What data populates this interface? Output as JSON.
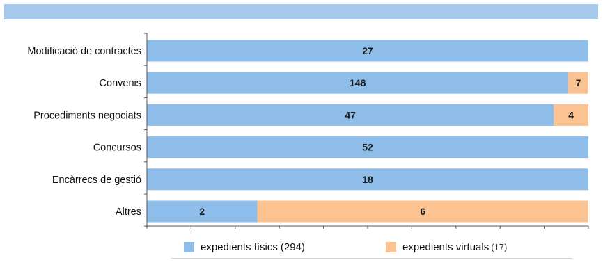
{
  "chart_data": {
    "type": "bar",
    "orientation": "horizontal",
    "stacking": "percent",
    "categories": [
      "Modificació de contractes",
      "Convenis",
      "Procediments negociats",
      "Concursos",
      "Encàrrecs de gestió",
      "Altres"
    ],
    "series": [
      {
        "name": "expedients físics",
        "count": "(294)",
        "color": "#8dbde8",
        "values": [
          27,
          148,
          47,
          52,
          18,
          2
        ]
      },
      {
        "name": "expedients virtuals",
        "count": "(17)",
        "color": "#fbc391",
        "values": [
          0,
          7,
          4,
          0,
          0,
          6
        ]
      }
    ],
    "xticks": [
      "0%",
      "10%",
      "20%",
      "30%",
      "40%",
      "50%",
      "60%",
      "70%",
      "80%",
      "90%",
      "100%"
    ],
    "xlim": [
      0,
      100
    ],
    "grid": false,
    "legend_position": "bottom"
  },
  "colors": {
    "top_band": "#a6c8ea",
    "axis": "#555555"
  }
}
